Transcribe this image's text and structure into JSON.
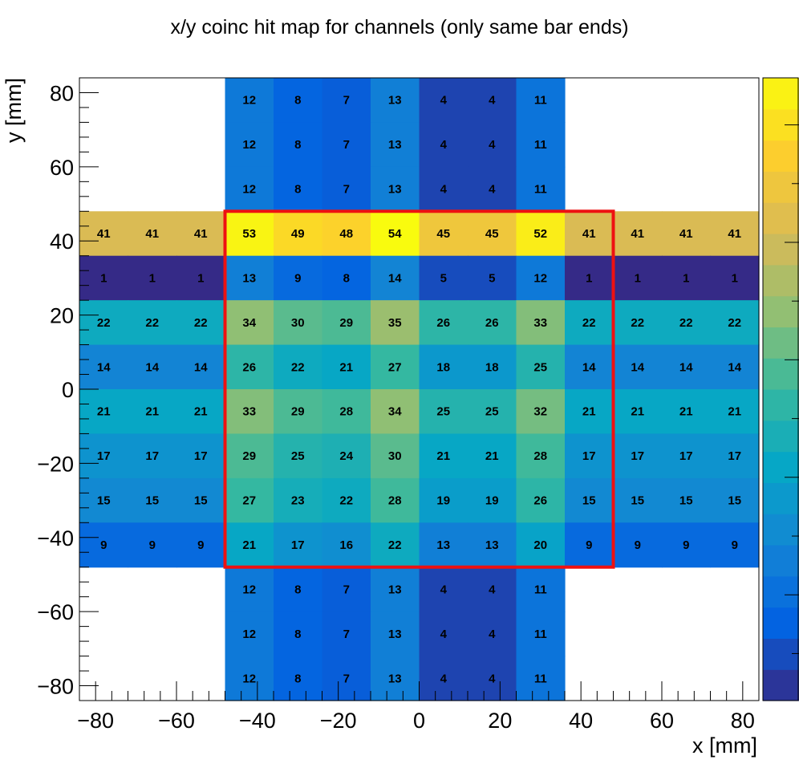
{
  "chart_data": {
    "type": "heatmap",
    "title": "x/y coinc hit map for channels (only same bar ends)",
    "xlabel": "x [mm]",
    "ylabel": "y [mm]",
    "xlim": [
      -84,
      84
    ],
    "ylim": [
      -84,
      84
    ],
    "x_ticks": [
      -80,
      -60,
      -40,
      -20,
      0,
      20,
      40,
      60,
      80
    ],
    "y_ticks": [
      -80,
      -60,
      -40,
      -20,
      0,
      20,
      40,
      60,
      80
    ],
    "x_tick_labels": [
      "−80",
      "−60",
      "−40",
      "−20",
      "0",
      "20",
      "40",
      "60",
      "80"
    ],
    "y_tick_labels": [
      "−80",
      "−60",
      "−40",
      "−20",
      "0",
      "20",
      "40",
      "60",
      "80"
    ],
    "x_bin_edges": [
      -84,
      -72,
      -60,
      -48,
      -36,
      -24,
      -12,
      0,
      12,
      24,
      36,
      48,
      60,
      72,
      84
    ],
    "y_bin_edges": [
      -84,
      -72,
      -60,
      -48,
      -36,
      -24,
      -12,
      0,
      12,
      24,
      36,
      48,
      60,
      72,
      84
    ],
    "values_top_row_first": [
      [
        null,
        null,
        null,
        12,
        8,
        7,
        13,
        4,
        4,
        11,
        null,
        null,
        null,
        null
      ],
      [
        null,
        null,
        null,
        12,
        8,
        7,
        13,
        4,
        4,
        11,
        null,
        null,
        null,
        null
      ],
      [
        null,
        null,
        null,
        12,
        8,
        7,
        13,
        4,
        4,
        11,
        null,
        null,
        null,
        null
      ],
      [
        41,
        41,
        41,
        53,
        49,
        48,
        54,
        45,
        45,
        52,
        41,
        41,
        41,
        41
      ],
      [
        1,
        1,
        1,
        13,
        9,
        8,
        14,
        5,
        5,
        12,
        1,
        1,
        1,
        1
      ],
      [
        22,
        22,
        22,
        34,
        30,
        29,
        35,
        26,
        26,
        33,
        22,
        22,
        22,
        22
      ],
      [
        14,
        14,
        14,
        26,
        22,
        21,
        27,
        18,
        18,
        25,
        14,
        14,
        14,
        14
      ],
      [
        21,
        21,
        21,
        33,
        29,
        28,
        34,
        25,
        25,
        32,
        21,
        21,
        21,
        21
      ],
      [
        17,
        17,
        17,
        29,
        25,
        24,
        30,
        21,
        21,
        28,
        17,
        17,
        17,
        17
      ],
      [
        15,
        15,
        15,
        27,
        23,
        22,
        28,
        19,
        19,
        26,
        15,
        15,
        15,
        15
      ],
      [
        9,
        9,
        9,
        21,
        17,
        16,
        22,
        13,
        13,
        20,
        9,
        9,
        9,
        9
      ],
      [
        null,
        null,
        null,
        12,
        8,
        7,
        13,
        4,
        4,
        11,
        null,
        null,
        null,
        null
      ],
      [
        null,
        null,
        null,
        12,
        8,
        7,
        13,
        4,
        4,
        11,
        null,
        null,
        null,
        null
      ],
      [
        null,
        null,
        null,
        12,
        8,
        7,
        13,
        4,
        4,
        11,
        null,
        null,
        null,
        null
      ]
    ],
    "z_range": [
      1,
      54
    ],
    "colormap": "parula",
    "palette": [
      "#352a87",
      "#0363e1",
      "#1485d4",
      "#06a7c6",
      "#38b99e",
      "#92bf73",
      "#d9ba56",
      "#fcce2e",
      "#f9fb0e"
    ],
    "highlight_box": {
      "x": [
        -48,
        48
      ],
      "y": [
        -48,
        48
      ],
      "color": "#ee1111"
    },
    "grid": false,
    "colorbar": "right"
  }
}
